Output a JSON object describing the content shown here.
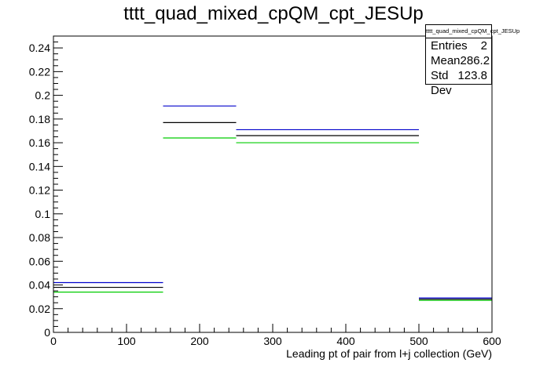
{
  "title": "tttt_quad_mixed_cpQM_cpt_JESUp",
  "stats": {
    "name": "tttt_quad_mixed_cpQM_cpt_JESUp",
    "entries_label": "Entries",
    "entries_value": "2",
    "mean_label": "Mean",
    "mean_value": "286.2",
    "stddev_label": "Std Dev",
    "stddev_value": "123.8"
  },
  "colors": {
    "nominal": "#000000",
    "blue": "#0000cc",
    "green": "#00cc00"
  },
  "chart_data": {
    "type": "histogram",
    "title": "tttt_quad_mixed_cpQM_cpt_JESUp",
    "xlabel": "Leading pt of pair from l+j collection (GeV)",
    "ylabel": "",
    "xlim": [
      0,
      600
    ],
    "ylim": [
      0,
      0.25
    ],
    "bin_edges": [
      0,
      150,
      250,
      500,
      600
    ],
    "x_ticks": [
      0,
      100,
      200,
      300,
      400,
      500,
      600
    ],
    "y_ticks": [
      0,
      0.02,
      0.04,
      0.06,
      0.08,
      0.1,
      0.12,
      0.14,
      0.16,
      0.18,
      0.2,
      0.22,
      0.24
    ],
    "y_tick_labels": [
      "0",
      "0.02",
      "0.04",
      "0.06",
      "0.08",
      "0.1",
      "0.12",
      "0.14",
      "0.16",
      "0.18",
      "0.2",
      "0.22",
      "0.24"
    ],
    "series": [
      {
        "color": "#0000cc",
        "values": [
          0.042,
          0.191,
          0.171,
          0.029
        ]
      },
      {
        "color": "#000000",
        "values": [
          0.038,
          0.177,
          0.166,
          0.028
        ]
      },
      {
        "color": "#00cc00",
        "values": [
          0.034,
          0.164,
          0.16,
          0.027
        ]
      }
    ]
  }
}
